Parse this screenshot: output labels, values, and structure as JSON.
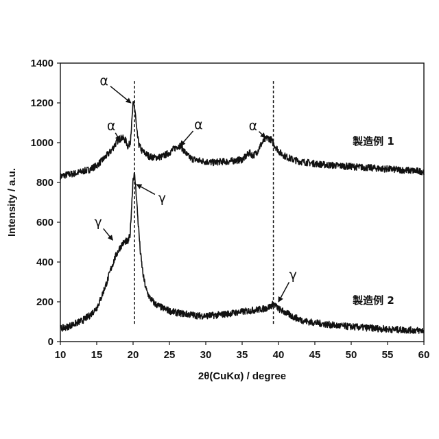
{
  "chart_data": {
    "type": "line",
    "xlabel": "2θ(CuKα) / degree",
    "ylabel": "Intensity / a.u.",
    "xlim": [
      10,
      60
    ],
    "ylim": [
      0,
      1400
    ],
    "xticks": [
      "10",
      "15",
      "20",
      "25",
      "30",
      "35",
      "40",
      "45",
      "50",
      "55",
      "60"
    ],
    "yticks": [
      "0",
      "200",
      "400",
      "600",
      "800",
      "1000",
      "1200",
      "1400"
    ],
    "grid": false,
    "legend": "none",
    "reference_lines_x": [
      20.2,
      39.3
    ],
    "series": [
      {
        "name": "製造例 1",
        "color": "#111111",
        "x": [
          10,
          11,
          12,
          13,
          14,
          15,
          16,
          17,
          17.5,
          18,
          18.5,
          19,
          19.3,
          19.6,
          19.8,
          20.0,
          20.1,
          20.3,
          20.5,
          20.8,
          21.2,
          21.7,
          22.3,
          23,
          24,
          25,
          26,
          26.5,
          27,
          27.5,
          28,
          29,
          30,
          31,
          32,
          33,
          34,
          35,
          35.5,
          36,
          36.5,
          37,
          37.5,
          38,
          38.5,
          39,
          39.3,
          39.7,
          40.2,
          41,
          42,
          43,
          44,
          45,
          46,
          48,
          50,
          52,
          54,
          56,
          58,
          60
        ],
        "values": [
          830,
          840,
          845,
          855,
          865,
          885,
          920,
          960,
          990,
          1015,
          1025,
          1010,
          980,
          1000,
          1090,
          1190,
          1205,
          1150,
          1060,
          990,
          960,
          945,
          930,
          925,
          930,
          950,
          980,
          985,
          960,
          935,
          920,
          910,
          905,
          900,
          905,
          905,
          910,
          915,
          930,
          950,
          935,
          950,
          985,
          1010,
          1025,
          1015,
          995,
          975,
          950,
          930,
          915,
          905,
          900,
          895,
          890,
          885,
          880,
          875,
          870,
          865,
          860,
          855
        ]
      },
      {
        "name": "製造例 2",
        "color": "#111111",
        "x": [
          10,
          11,
          12,
          13,
          14,
          15,
          15.5,
          16,
          16.5,
          17,
          17.5,
          18,
          18.5,
          19,
          19.3,
          19.6,
          19.8,
          20.0,
          20.2,
          20.4,
          20.7,
          21,
          21.4,
          21.8,
          22.3,
          23,
          24,
          25,
          26,
          27,
          28,
          29,
          30,
          31,
          32,
          33,
          34,
          35,
          36,
          37,
          38,
          38.5,
          39,
          39.3,
          39.6,
          40,
          41,
          42,
          43,
          44,
          45,
          46,
          48,
          50,
          52,
          54,
          56,
          58,
          60
        ],
        "values": [
          65,
          75,
          90,
          105,
          130,
          170,
          210,
          260,
          310,
          370,
          420,
          460,
          490,
          505,
          500,
          540,
          680,
          820,
          840,
          760,
          600,
          450,
          330,
          260,
          220,
          190,
          170,
          155,
          145,
          140,
          135,
          130,
          130,
          132,
          135,
          140,
          145,
          150,
          155,
          160,
          165,
          170,
          180,
          190,
          180,
          165,
          145,
          125,
          110,
          100,
          95,
          90,
          80,
          75,
          70,
          65,
          60,
          58,
          55
        ]
      }
    ],
    "annotations": [
      {
        "text": "α",
        "x": 17.0,
        "y": 1085,
        "tx": 18.2,
        "ty": 1010
      },
      {
        "text": "α",
        "x": 16.0,
        "y": 1310,
        "tx": 19.7,
        "ty": 1200
      },
      {
        "text": "α",
        "x": 29.0,
        "y": 1090,
        "tx": 26.5,
        "ty": 985
      },
      {
        "text": "α",
        "x": 36.5,
        "y": 1085,
        "tx": 38.2,
        "ty": 1025
      },
      {
        "text": "γ",
        "x": 15.2,
        "y": 600,
        "tx": 17.2,
        "ty": 510
      },
      {
        "text": "γ",
        "x": 24.0,
        "y": 720,
        "tx": 20.5,
        "ty": 790
      },
      {
        "text": "γ",
        "x": 42.0,
        "y": 335,
        "tx": 40.0,
        "ty": 200
      }
    ]
  }
}
